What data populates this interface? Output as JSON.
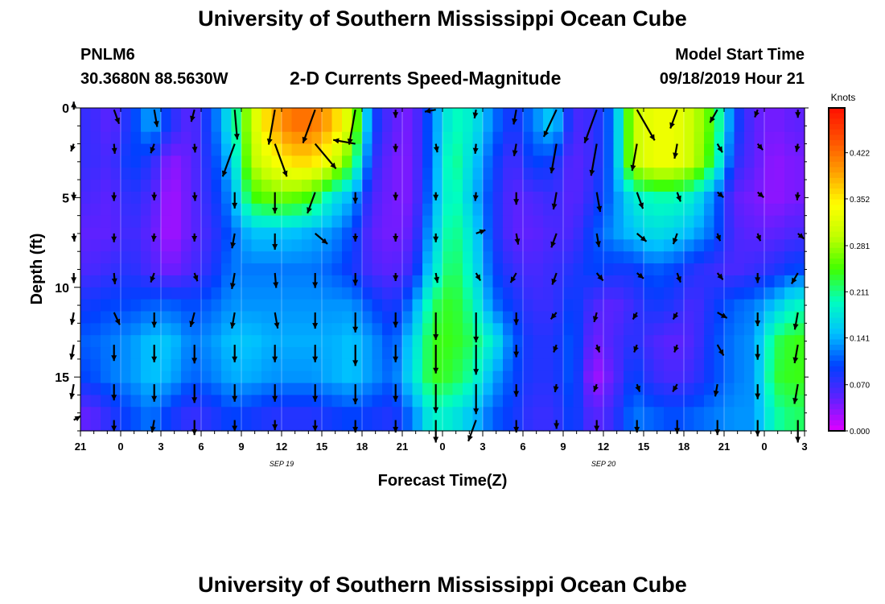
{
  "header": {
    "title": "University of Southern Mississippi Ocean Cube",
    "station": "PNLM6",
    "location": "30.3680N 88.5630W",
    "subtitle": "2-D Currents Speed-Magnitude",
    "model_label": "Model Start Time",
    "model_time": "09/18/2019 Hour 21"
  },
  "footer": {
    "title": "University of Southern Mississippi Ocean Cube"
  },
  "chart_data": {
    "type": "heatmap",
    "title": "2-D Currents Speed-Magnitude",
    "xlabel": "Forecast Time(Z)",
    "ylabel": "Depth (ft)",
    "x_ticks": [
      "21",
      "0",
      "3",
      "6",
      "9",
      "12",
      "15",
      "18",
      "21",
      "0",
      "3",
      "6",
      "9",
      "12",
      "15",
      "18",
      "21",
      "0",
      "3"
    ],
    "x_date_labels": [
      {
        "label": "SEP 19",
        "at_tick_index": 5
      },
      {
        "label": "SEP 20",
        "at_tick_index": 13
      }
    ],
    "y_ticks": [
      0,
      5,
      10,
      15
    ],
    "ylim": [
      0,
      18
    ],
    "y_inverted": true,
    "colorbar": {
      "unit": "Knots",
      "ticks": [
        "0.000",
        "0.070",
        "0.141",
        "0.211",
        "0.281",
        "0.352",
        "0.422"
      ],
      "range": [
        0,
        0.49
      ],
      "colors": [
        "#e000ff",
        "#6020ff",
        "#0040ff",
        "#00c0ff",
        "#00ffc0",
        "#40ff00",
        "#c0ff00",
        "#ffff00",
        "#ffa000",
        "#ff5000",
        "#ff1000"
      ]
    },
    "columns": 36,
    "depth_rows": [
      1,
      3,
      5,
      7,
      9,
      11,
      13,
      15,
      17
    ],
    "speed": [
      [
        0.07,
        0.05,
        0.09,
        0.14,
        0.08,
        0.05,
        0.1,
        0.18,
        0.3,
        0.38,
        0.42,
        0.42,
        0.38,
        0.3,
        0.1,
        0.05,
        0.04,
        0.12,
        0.2,
        0.18,
        0.12,
        0.08,
        0.12,
        0.16,
        0.06,
        0.07,
        0.12,
        0.3,
        0.33,
        0.33,
        0.3,
        0.24,
        0.1,
        0.05,
        0.04,
        0.05
      ],
      [
        0.07,
        0.06,
        0.1,
        0.08,
        0.03,
        0.05,
        0.09,
        0.15,
        0.29,
        0.33,
        0.36,
        0.36,
        0.32,
        0.24,
        0.08,
        0.04,
        0.04,
        0.12,
        0.22,
        0.16,
        0.1,
        0.06,
        0.1,
        0.09,
        0.05,
        0.07,
        0.12,
        0.3,
        0.33,
        0.33,
        0.3,
        0.22,
        0.08,
        0.05,
        0.03,
        0.04
      ],
      [
        0.06,
        0.05,
        0.08,
        0.06,
        0.02,
        0.05,
        0.08,
        0.13,
        0.24,
        0.26,
        0.26,
        0.24,
        0.18,
        0.14,
        0.06,
        0.04,
        0.04,
        0.13,
        0.21,
        0.15,
        0.09,
        0.05,
        0.06,
        0.07,
        0.05,
        0.08,
        0.12,
        0.18,
        0.2,
        0.2,
        0.18,
        0.12,
        0.05,
        0.04,
        0.03,
        0.04
      ],
      [
        0.05,
        0.05,
        0.07,
        0.05,
        0.02,
        0.05,
        0.07,
        0.11,
        0.15,
        0.15,
        0.15,
        0.14,
        0.13,
        0.1,
        0.05,
        0.04,
        0.05,
        0.15,
        0.22,
        0.17,
        0.09,
        0.05,
        0.05,
        0.06,
        0.06,
        0.1,
        0.13,
        0.15,
        0.17,
        0.16,
        0.14,
        0.11,
        0.06,
        0.05,
        0.05,
        0.06
      ],
      [
        0.06,
        0.07,
        0.08,
        0.06,
        0.04,
        0.06,
        0.08,
        0.12,
        0.12,
        0.12,
        0.12,
        0.12,
        0.11,
        0.09,
        0.06,
        0.05,
        0.07,
        0.17,
        0.23,
        0.18,
        0.1,
        0.07,
        0.06,
        0.07,
        0.08,
        0.1,
        0.09,
        0.09,
        0.11,
        0.1,
        0.08,
        0.07,
        0.06,
        0.07,
        0.08,
        0.1
      ],
      [
        0.09,
        0.1,
        0.1,
        0.11,
        0.11,
        0.1,
        0.11,
        0.13,
        0.13,
        0.13,
        0.13,
        0.13,
        0.13,
        0.13,
        0.1,
        0.08,
        0.12,
        0.22,
        0.24,
        0.2,
        0.12,
        0.09,
        0.07,
        0.07,
        0.1,
        0.06,
        0.05,
        0.07,
        0.09,
        0.08,
        0.06,
        0.09,
        0.11,
        0.12,
        0.15,
        0.19
      ],
      [
        0.11,
        0.12,
        0.13,
        0.15,
        0.15,
        0.12,
        0.13,
        0.15,
        0.15,
        0.14,
        0.14,
        0.14,
        0.14,
        0.15,
        0.13,
        0.1,
        0.16,
        0.24,
        0.24,
        0.22,
        0.18,
        0.11,
        0.08,
        0.08,
        0.11,
        0.04,
        0.06,
        0.08,
        0.06,
        0.05,
        0.06,
        0.1,
        0.12,
        0.13,
        0.22,
        0.24
      ],
      [
        0.1,
        0.12,
        0.13,
        0.15,
        0.14,
        0.11,
        0.12,
        0.14,
        0.14,
        0.13,
        0.13,
        0.13,
        0.14,
        0.15,
        0.13,
        0.11,
        0.17,
        0.24,
        0.23,
        0.2,
        0.14,
        0.1,
        0.08,
        0.08,
        0.11,
        0.02,
        0.05,
        0.1,
        0.07,
        0.06,
        0.07,
        0.1,
        0.12,
        0.13,
        0.23,
        0.24
      ],
      [
        0.05,
        0.08,
        0.1,
        0.12,
        0.09,
        0.07,
        0.08,
        0.1,
        0.09,
        0.08,
        0.08,
        0.08,
        0.09,
        0.1,
        0.09,
        0.08,
        0.12,
        0.19,
        0.18,
        0.15,
        0.11,
        0.09,
        0.07,
        0.07,
        0.1,
        0.05,
        0.07,
        0.12,
        0.11,
        0.1,
        0.11,
        0.12,
        0.13,
        0.13,
        0.2,
        0.22
      ]
    ],
    "vector_times": [
      -0.5,
      2.5,
      5.5,
      8.5,
      11.5,
      14.5,
      17.5,
      20.5,
      23.5,
      26.5,
      29.5,
      32.5,
      35.5,
      38.5,
      41.5,
      44.5,
      47.5,
      50.5,
      53.5
    ],
    "vector_depths": [
      0.1,
      2.0,
      4.7,
      7.0,
      9.2,
      11.4,
      13.2,
      15.4,
      17.4
    ],
    "vector_dirs": [
      [
        0,
        160,
        170,
        195,
        175,
        190,
        200,
        190,
        180,
        260,
        190,
        190,
        205,
        200,
        150,
        200,
        210,
        200,
        180
      ],
      [
        200,
        175,
        200,
        175,
        200,
        160,
        140,
        280,
        180,
        170,
        185,
        190,
        190,
        190,
        190,
        190,
        150,
        140,
        190
      ],
      [
        180,
        180,
        180,
        175,
        180,
        180,
        200,
        180,
        180,
        180,
        185,
        180,
        190,
        170,
        160,
        160,
        130,
        130,
        185
      ],
      [
        175,
        180,
        185,
        180,
        190,
        180,
        130,
        180,
        180,
        180,
        70,
        170,
        200,
        170,
        130,
        200,
        160,
        160,
        130
      ],
      [
        180,
        175,
        200,
        160,
        190,
        175,
        180,
        180,
        180,
        170,
        150,
        210,
        200,
        140,
        130,
        160,
        140,
        180,
        210
      ],
      [
        190,
        155,
        180,
        195,
        190,
        170,
        180,
        180,
        180,
        180,
        180,
        180,
        220,
        195,
        210,
        210,
        120,
        180,
        190
      ],
      [
        190,
        180,
        180,
        180,
        180,
        180,
        180,
        180,
        180,
        180,
        180,
        180,
        200,
        160,
        200,
        200,
        150,
        180,
        190
      ],
      [
        190,
        180,
        180,
        180,
        180,
        180,
        180,
        180,
        180,
        180,
        180,
        180,
        190,
        200,
        160,
        210,
        190,
        180,
        190
      ],
      [
        60,
        180,
        190,
        180,
        180,
        180,
        180,
        180,
        180,
        180,
        200,
        180,
        180,
        180,
        180,
        180,
        180,
        180,
        180
      ]
    ],
    "vector_mags": [
      [
        0.05,
        0.12,
        0.14,
        0.1,
        0.24,
        0.38,
        0.38,
        0.35,
        0.02,
        0.09,
        0.07,
        0.12,
        0.24,
        0.32,
        0.32,
        0.16,
        0.12,
        0.06,
        0.03
      ],
      [
        0.06,
        0.08,
        0.08,
        0.07,
        0.28,
        0.28,
        0.26,
        0.18,
        0.05,
        0.07,
        0.08,
        0.1,
        0.24,
        0.26,
        0.22,
        0.12,
        0.08,
        0.05,
        0.03
      ],
      [
        0.05,
        0.07,
        0.05,
        0.07,
        0.13,
        0.17,
        0.18,
        0.09,
        0.03,
        0.06,
        0.07,
        0.1,
        0.14,
        0.16,
        0.14,
        0.08,
        0.06,
        0.04,
        0.04
      ],
      [
        0.05,
        0.07,
        0.05,
        0.06,
        0.12,
        0.13,
        0.13,
        0.05,
        0.03,
        0.07,
        0.08,
        0.09,
        0.12,
        0.11,
        0.1,
        0.09,
        0.06,
        0.05,
        0.06
      ],
      [
        0.08,
        0.09,
        0.08,
        0.07,
        0.13,
        0.12,
        0.12,
        0.1,
        0.03,
        0.08,
        0.07,
        0.09,
        0.1,
        0.08,
        0.07,
        0.08,
        0.07,
        0.08,
        0.1
      ],
      [
        0.1,
        0.11,
        0.12,
        0.12,
        0.13,
        0.13,
        0.13,
        0.16,
        0.12,
        0.22,
        0.24,
        0.1,
        0.07,
        0.08,
        0.06,
        0.06,
        0.09,
        0.11,
        0.14
      ],
      [
        0.12,
        0.13,
        0.14,
        0.15,
        0.14,
        0.14,
        0.14,
        0.17,
        0.14,
        0.23,
        0.24,
        0.1,
        0.06,
        0.06,
        0.05,
        0.06,
        0.1,
        0.12,
        0.15
      ],
      [
        0.12,
        0.13,
        0.14,
        0.15,
        0.14,
        0.14,
        0.14,
        0.16,
        0.14,
        0.23,
        0.24,
        0.1,
        0.06,
        0.06,
        0.06,
        0.07,
        0.1,
        0.12,
        0.16
      ],
      [
        0.06,
        0.09,
        0.1,
        0.12,
        0.09,
        0.08,
        0.09,
        0.1,
        0.1,
        0.18,
        0.18,
        0.1,
        0.07,
        0.09,
        0.1,
        0.11,
        0.12,
        0.13,
        0.18
      ]
    ]
  }
}
